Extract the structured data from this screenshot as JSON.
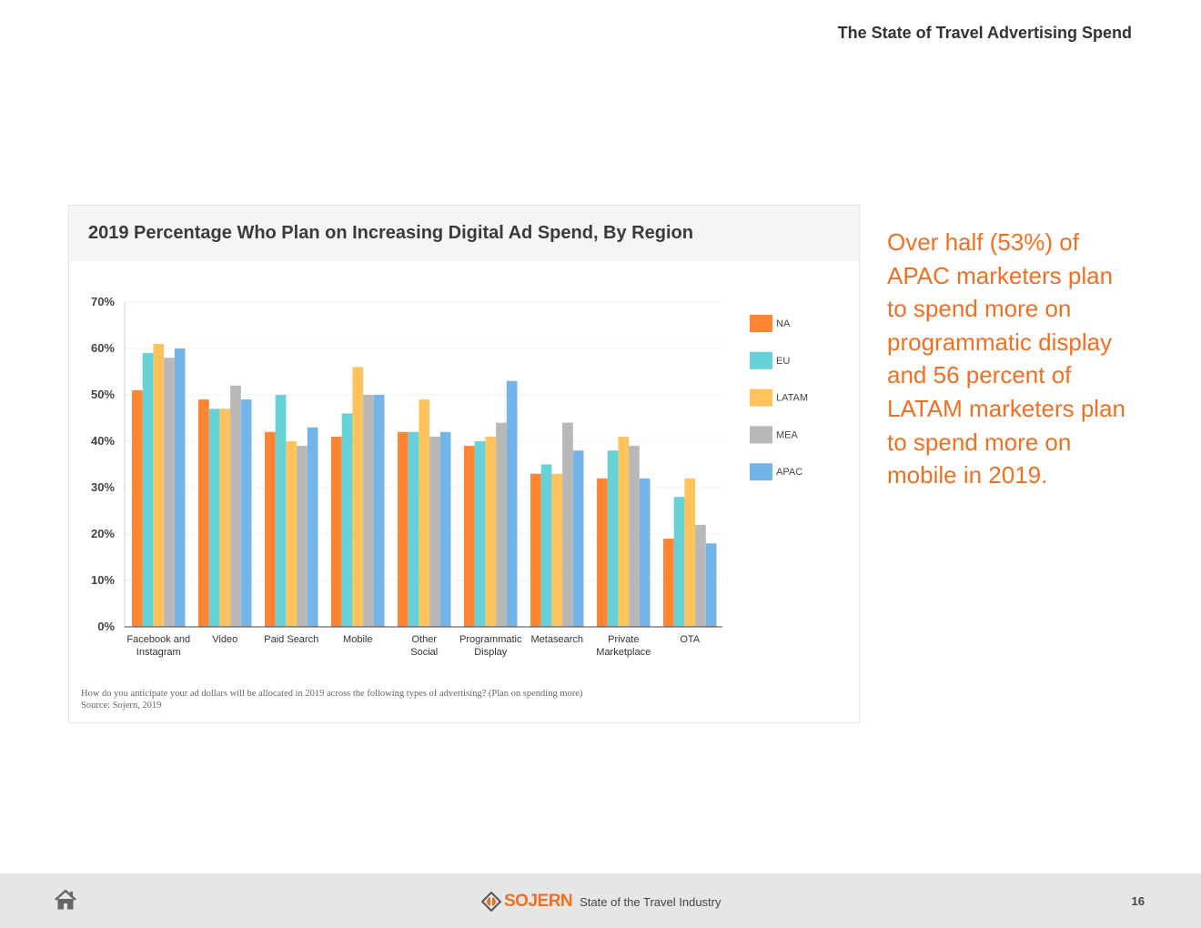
{
  "header": {
    "title": "The State of Travel Advertising Spend"
  },
  "chart_data": {
    "type": "bar",
    "title": "2019 Percentage Who Plan on Increasing Digital Ad Spend, By Region",
    "categories": [
      [
        "Facebook and",
        "Instagram"
      ],
      [
        "Video"
      ],
      [
        "Paid Search"
      ],
      [
        "Mobile"
      ],
      [
        "Other",
        "Social"
      ],
      [
        "Programmatic",
        "Display"
      ],
      [
        "Metasearch"
      ],
      [
        "Private",
        "Marketplace"
      ],
      [
        "OTA"
      ]
    ],
    "series": [
      {
        "name": "NA",
        "color": "#ff8533",
        "values": [
          51,
          49,
          42,
          41,
          42,
          39,
          33,
          32,
          19
        ]
      },
      {
        "name": "EU",
        "color": "#66d1d6",
        "values": [
          59,
          47,
          50,
          46,
          42,
          40,
          35,
          38,
          28
        ]
      },
      {
        "name": "LATAM",
        "color": "#ffc25c",
        "values": [
          61,
          47,
          40,
          56,
          49,
          41,
          33,
          41,
          32
        ]
      },
      {
        "name": "MEA",
        "color": "#b8b8b8",
        "values": [
          58,
          52,
          39,
          50,
          41,
          44,
          44,
          39,
          22
        ]
      },
      {
        "name": "APAC",
        "color": "#73b5e8",
        "values": [
          60,
          49,
          43,
          50,
          42,
          53,
          38,
          32,
          18
        ]
      }
    ],
    "yticks": [
      "0%",
      "10%",
      "20%",
      "30%",
      "40%",
      "50%",
      "60%",
      "70%"
    ],
    "ylim": [
      0,
      70
    ],
    "legend_position": "right",
    "grid": true
  },
  "chart_note": {
    "question": "How do you anticipate your ad dollars will be allocated in 2019 across the following types of advertising? (Plan on spending more)",
    "source": "Source: Sojern, 2019"
  },
  "callout": {
    "text": "Over half (53%) of APAC marketers plan to spend more on programmatic display and 56 percent of LATAM marketers plan to spend more on mobile in 2019."
  },
  "footer": {
    "home_icon": "home-icon",
    "brand": "SOJERN",
    "subtitle": "State of the Travel Industry",
    "page_number": "16"
  }
}
